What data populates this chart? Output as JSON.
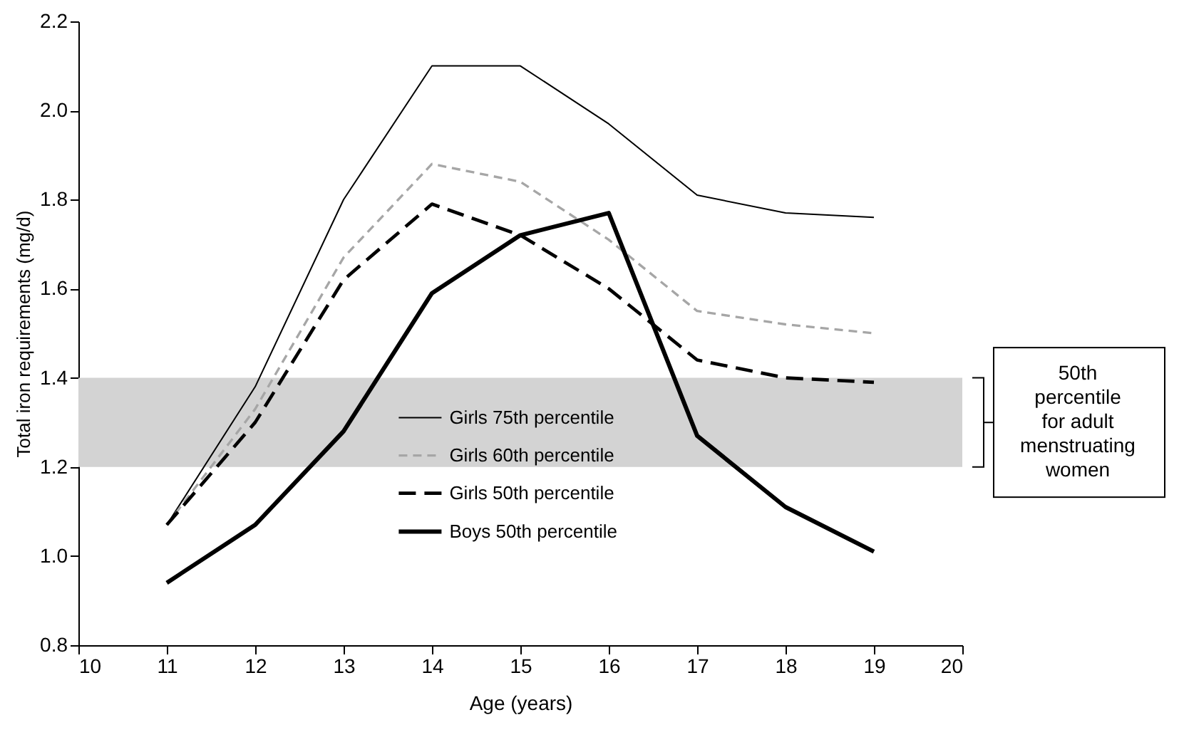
{
  "chart_data": {
    "type": "line",
    "xlabel": "Age (years)",
    "ylabel": "Total iron requirements (mg/d)",
    "x": [
      11,
      12,
      13,
      14,
      15,
      16,
      17,
      18,
      19
    ],
    "xlim": [
      10,
      20
    ],
    "xticks": [
      10,
      11,
      12,
      13,
      14,
      15,
      16,
      17,
      18,
      19,
      20
    ],
    "ylim": [
      0.8,
      2.2
    ],
    "yticks": [
      0.8,
      {
        "value": 1,
        "label": "1.0"
      },
      1.2,
      1.4,
      1.6,
      1.8,
      {
        "value": 2,
        "label": "2.0"
      },
      2.2
    ],
    "grid": false,
    "legend": "bottom",
    "marker": "none",
    "series": [
      {
        "name": "Girls 75th percentile",
        "color": "#000000",
        "line_style": "solid",
        "values": [
          1.07,
          1.38,
          1.8,
          2.1,
          2.1,
          1.97,
          1.81,
          1.77,
          1.76
        ]
      },
      {
        "name": "Girls 60th percentile",
        "color": "#a6a6a6",
        "line_style": "dashed",
        "values": [
          1.07,
          1.33,
          1.67,
          1.88,
          1.84,
          1.71,
          1.55,
          1.52,
          1.5
        ]
      },
      {
        "name": "Girls 50th percentile",
        "color": "#000000",
        "line_style": "dashed",
        "values": [
          1.07,
          1.3,
          1.62,
          1.79,
          1.72,
          1.6,
          1.44,
          1.4,
          1.39
        ]
      },
      {
        "name": "Boys 50th percentile",
        "color": "#000000",
        "line_style": "solid",
        "values": [
          0.94,
          1.07,
          1.28,
          1.59,
          1.72,
          1.77,
          1.27,
          1.11,
          1.01
        ]
      }
    ],
    "bands": [
      {
        "axis": "y",
        "from": 1.2,
        "to": 1.4,
        "label": "50th percentile for adult menstruating women",
        "color": "#d3d3d3"
      }
    ]
  }
}
